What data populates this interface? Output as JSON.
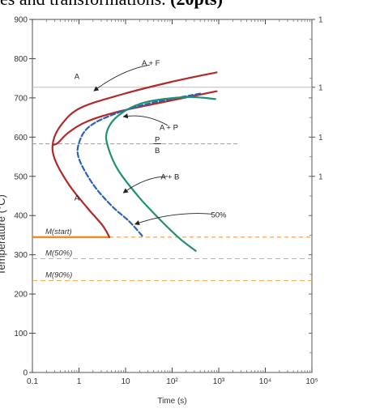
{
  "header": {
    "title_fragment": "es and transformations. ",
    "points": "(20pts)"
  },
  "chart_data": {
    "type": "line",
    "title": "",
    "xlabel": "Time (s)",
    "ylabel": "Temperature (°C)",
    "xscale": "log",
    "xlim": [
      0.1,
      100000
    ],
    "ylim": [
      0,
      900
    ],
    "x_tick_labels": [
      "0.1",
      "1",
      "10",
      "10²",
      "10³",
      "10⁴",
      "10⁵"
    ],
    "x_ticks": [
      0.1,
      1,
      10,
      100,
      1000,
      10000,
      100000
    ],
    "y_tick_labels": [
      "0",
      "100",
      "200",
      "300",
      "400",
      "500",
      "600",
      "700",
      "800",
      "900"
    ],
    "y_ticks": [
      0,
      100,
      200,
      300,
      400,
      500,
      600,
      700,
      800,
      900
    ],
    "right_axis_labels": [
      "1",
      "1",
      "1",
      "1"
    ],
    "right_axis_ticks": [
      900,
      727,
      600,
      500
    ],
    "reference_lines": [
      {
        "label": "",
        "y": 727,
        "color": "#bbbbbb",
        "style": "solid"
      },
      {
        "label": "",
        "y": 583,
        "color": "#999999",
        "style": "dashed",
        "x_end": 2800
      }
    ],
    "martensite_lines": [
      {
        "label": "M(start)",
        "y": 345,
        "color": "#f08a24"
      },
      {
        "label": "M(50%)",
        "y": 290,
        "color": "#f3a64a"
      },
      {
        "label": "M(90%)",
        "y": 234,
        "color": "#f3a64a"
      }
    ],
    "series": [
      {
        "name": "",
        "color": "#b02a2a",
        "style": "solid",
        "points": [
          [
            900,
            765
          ],
          [
            90,
            740
          ],
          [
            9,
            710
          ],
          [
            1.1,
            675
          ],
          [
            0.44,
            635
          ],
          [
            0.28,
            590
          ],
          [
            0.3,
            545
          ],
          [
            0.6,
            480
          ],
          [
            1.5,
            420
          ],
          [
            3.2,
            375
          ],
          [
            4.5,
            345
          ]
        ]
      },
      {
        "name": "",
        "color": "#b02a2a",
        "style": "solid",
        "points": [
          [
            900,
            717
          ],
          [
            70,
            690
          ],
          [
            7,
            665
          ],
          [
            1.5,
            640
          ],
          [
            0.6,
            612
          ],
          [
            0.35,
            585
          ],
          [
            0.28,
            580
          ]
        ]
      },
      {
        "name": "",
        "color": "#2a62b2",
        "style": "dashed",
        "points": [
          [
            400,
            711
          ],
          [
            30,
            685
          ],
          [
            5,
            656
          ],
          [
            1.6,
            625
          ],
          [
            1.0,
            585
          ],
          [
            1.0,
            545
          ],
          [
            2.0,
            480
          ],
          [
            5.0,
            425
          ],
          [
            12,
            385
          ],
          [
            24,
            345
          ]
        ]
      },
      {
        "name": "",
        "color": "#1f9170",
        "style": "solid",
        "points": [
          [
            850,
            697
          ],
          [
            200,
            702
          ],
          [
            25,
            688
          ],
          [
            7,
            655
          ],
          [
            4.0,
            615
          ],
          [
            4.2,
            575
          ],
          [
            7.0,
            515
          ],
          [
            20,
            445
          ],
          [
            60,
            385
          ],
          [
            150,
            340
          ],
          [
            320,
            310
          ]
        ]
      }
    ],
    "region_labels": [
      {
        "text": "A",
        "x": 0.9,
        "y": 755
      },
      {
        "text": "A + F",
        "x": 35,
        "y": 790
      },
      {
        "text": "A + P",
        "x": 85,
        "y": 625
      },
      {
        "text": "P",
        "x": 48,
        "y": 595
      },
      {
        "text": "B",
        "x": 48,
        "y": 567
      },
      {
        "text": "A + B",
        "x": 90,
        "y": 500
      },
      {
        "text": "50%",
        "x": 1000,
        "y": 403
      },
      {
        "text": "A",
        "x": 0.9,
        "y": 446
      }
    ],
    "annotations": [
      {
        "text_ref": "A + F",
        "arrow_from": [
          33,
          784
        ],
        "arrow_to": [
          2.1,
          718
        ]
      },
      {
        "text_ref": "A + P",
        "arrow_from": [
          80,
          630
        ],
        "arrow_to": [
          9,
          652
        ]
      },
      {
        "text_ref": "A + B",
        "arrow_from": [
          80,
          500
        ],
        "arrow_to": [
          9,
          458
        ]
      },
      {
        "text_ref": "50%",
        "arrow_from": [
          700,
          404
        ],
        "arrow_to": [
          16,
          378
        ]
      }
    ],
    "grid": false,
    "legend": "none"
  }
}
